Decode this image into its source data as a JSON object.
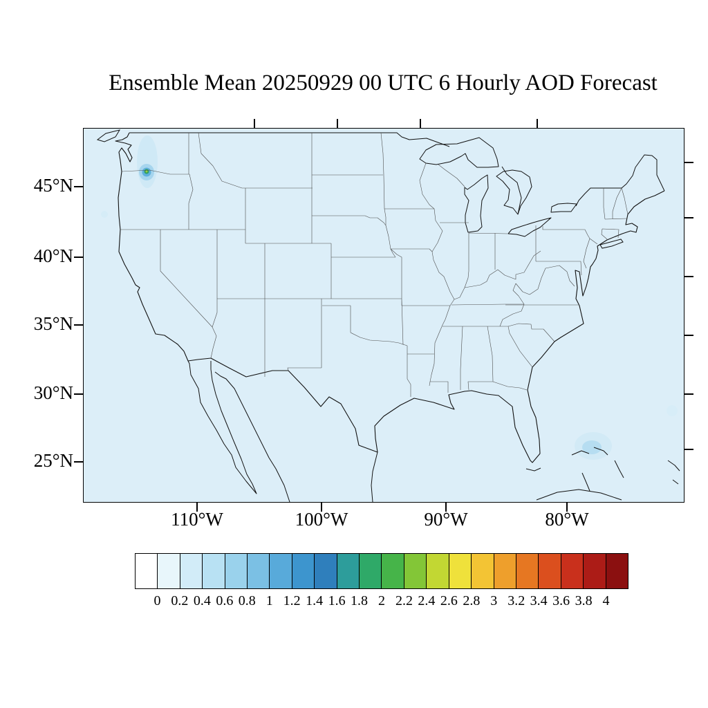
{
  "title": "Ensemble Mean 20250929 00 UTC 6 Hourly AOD Forecast",
  "map": {
    "lat_tick_labels": [
      "45°N",
      "40°N",
      "35°N",
      "30°N",
      "25°N"
    ],
    "lon_tick_labels": [
      "110°W",
      "100°W",
      "90°W",
      "80°W"
    ],
    "background_color": "#dceef8",
    "coast_color": "#111111",
    "state_border_color": "#4d4d4d"
  },
  "colorbar": {
    "tick_labels": [
      "0",
      "0.2",
      "0.4",
      "0.6",
      "0.8",
      "1",
      "1.2",
      "1.4",
      "1.6",
      "1.8",
      "2",
      "2.2",
      "2.4",
      "2.6",
      "2.8",
      "3",
      "3.2",
      "3.4",
      "3.6",
      "3.8",
      "4"
    ],
    "colors": [
      "#ffffff",
      "#e8f6fb",
      "#d2ecf8",
      "#b8e1f3",
      "#9ad2ec",
      "#7bc0e4",
      "#58aada",
      "#3d95ce",
      "#2f7fbc",
      "#2d9d9b",
      "#2fa968",
      "#46b449",
      "#83c637",
      "#c2d733",
      "#efe13b",
      "#f3c434",
      "#ee9f2c",
      "#e67722",
      "#db4f1e",
      "#c9301c",
      "#ac1c17",
      "#8b1010"
    ]
  },
  "chart_data": {
    "type": "heatmap",
    "title": "Ensemble Mean 20250929 00 UTC 6 Hourly AOD Forecast",
    "variable": "AOD (Aerosol Optical Depth), ensemble mean 6 hourly forecast",
    "region": "Contiguous United States with state boundaries",
    "x_tick_labels": [
      "110°W",
      "100°W",
      "90°W",
      "80°W"
    ],
    "y_tick_labels": [
      "45°N",
      "40°N",
      "35°N",
      "30°N",
      "25°N"
    ],
    "colorbar_levels": [
      0,
      0.2,
      0.4,
      0.6,
      0.8,
      1,
      1.2,
      1.4,
      1.6,
      1.8,
      2,
      2.2,
      2.4,
      2.6,
      2.8,
      3,
      3.2,
      3.4,
      3.6,
      3.8,
      4
    ],
    "colorbar_orientation": "horizontal-bottom",
    "grid": "off",
    "features": [
      {
        "name": "aod-plume-pacific-northwest",
        "approx_location": "central Washington, ~120°W 47°N, streak extending north",
        "peak_aod": 1.4
      },
      {
        "name": "aod-area-bahamas",
        "approx_location": "near the Bahamas / south of Florida, ~79°W 26°N",
        "peak_aod": 0.4
      },
      {
        "name": "aod-spot-oregon-coast",
        "approx_location": "off the Oregon coast, ~125°W 43°N",
        "peak_aod": 0.2
      },
      {
        "name": "aod-spot-atlantic-east-edge",
        "approx_location": "right map edge, ~28°N",
        "peak_aod": 0.2
      },
      {
        "name": "background-field",
        "aod": "0 to 0.2 everywhere else"
      }
    ]
  }
}
